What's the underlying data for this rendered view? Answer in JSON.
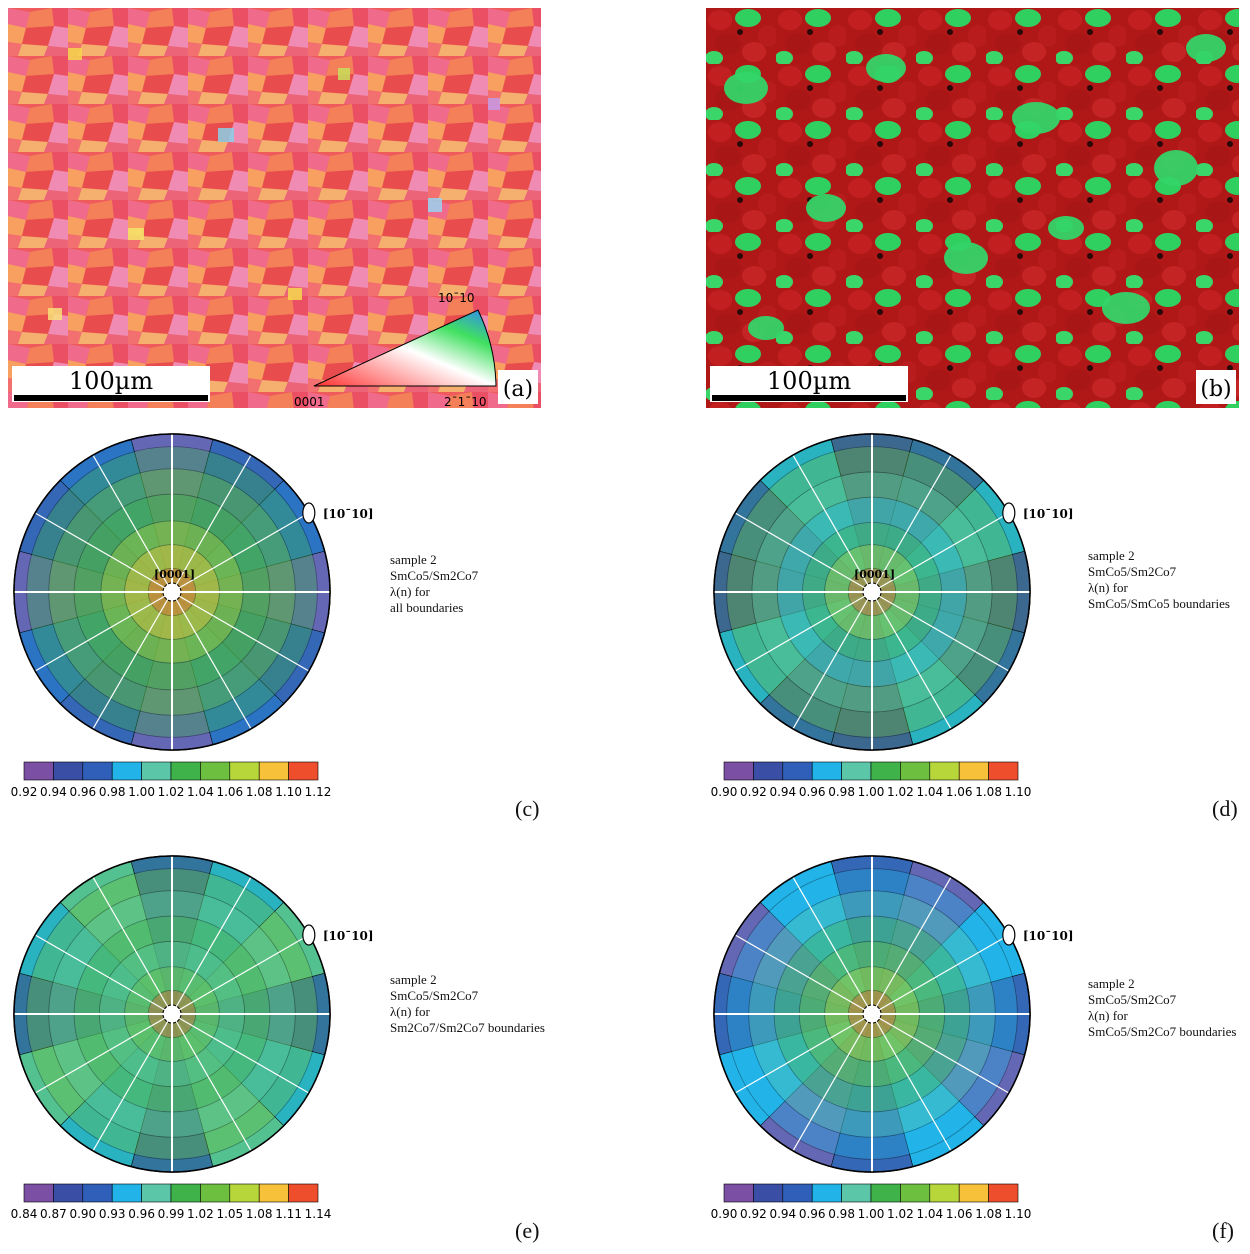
{
  "panels": {
    "a": {
      "label": "(a)",
      "scale_bar": "100µm",
      "ipf_key": {
        "top": "10¯10",
        "left": "0001",
        "right": "2¯1¯10"
      }
    },
    "b": {
      "label": "(b)",
      "scale_bar": "100µm"
    },
    "c": {
      "label": "(c)",
      "direction": "[10¯10]",
      "center_label": "[0001]",
      "caption": [
        "sample 2",
        "SmCo5/Sm2Co7",
        "λ(n) for",
        "all boundaries"
      ],
      "colorbar": [
        "0.92",
        "0.94",
        "0.96",
        "0.98",
        "1.00",
        "1.02",
        "1.04",
        "1.06",
        "1.08",
        "1.10",
        "1.12"
      ]
    },
    "d": {
      "label": "(d)",
      "direction": "[10¯10]",
      "center_label": "[0001]",
      "caption": [
        "sample 2",
        "SmCo5/Sm2Co7",
        "λ(n) for",
        "SmCo5/SmCo5 boundaries"
      ],
      "colorbar": [
        "0.90",
        "0.92",
        "0.94",
        "0.96",
        "0.98",
        "1.00",
        "1.02",
        "1.04",
        "1.06",
        "1.08",
        "1.10"
      ]
    },
    "e": {
      "label": "(e)",
      "direction": "[10¯10]",
      "caption": [
        "sample 2",
        "SmCo5/Sm2Co7",
        "λ(n) for",
        "Sm2Co7/Sm2Co7 boundaries"
      ],
      "colorbar": [
        "0.84",
        "0.87",
        "0.90",
        "0.93",
        "0.96",
        "0.99",
        "1.02",
        "1.05",
        "1.08",
        "1.11",
        "1.14"
      ]
    },
    "f": {
      "label": "(f)",
      "direction": "[10¯10]",
      "caption": [
        "sample 2",
        "SmCo5/Sm2Co7",
        "λ(n) for",
        "SmCo5/Sm2Co7 boundaries"
      ],
      "colorbar": [
        "0.90",
        "0.92",
        "0.94",
        "0.96",
        "0.98",
        "1.00",
        "1.02",
        "1.04",
        "1.06",
        "1.08",
        "1.10"
      ]
    }
  },
  "colors": {
    "colorbar": [
      "#7b4fa3",
      "#3b4ea5",
      "#2f5fb8",
      "#22b4e8",
      "#5cc7a8",
      "#3fb34a",
      "#6dbf3f",
      "#b6d63a",
      "#f7c23a",
      "#ef4e2d"
    ]
  }
}
